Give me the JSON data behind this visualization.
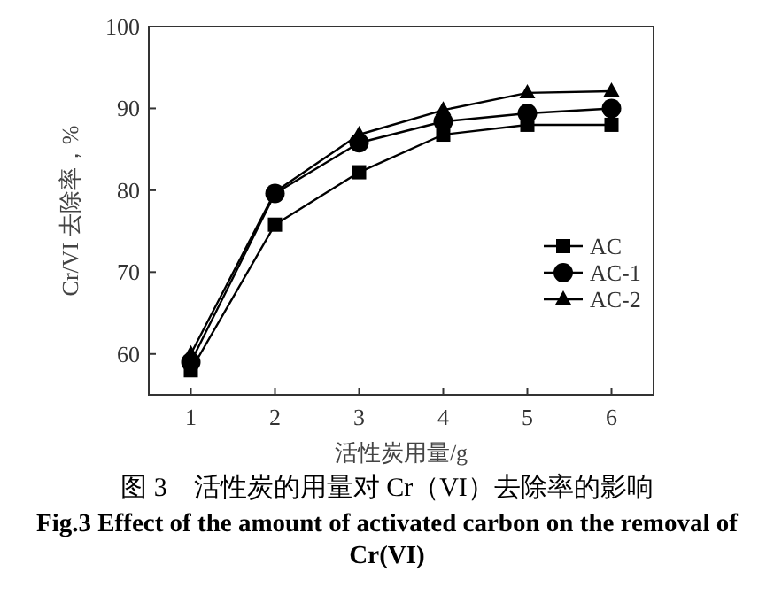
{
  "chart_data": {
    "type": "line",
    "title": "图 3　活性炭的用量对 Cr（VI）去除率的影响",
    "subtitle": "Fig.3 Effect of the amount of activated carbon on the removal of Cr(VI)",
    "xlabel": "活性炭用量/g",
    "ylabel": "Cr/VI 去除率，%",
    "x": [
      1,
      2,
      3,
      4,
      5,
      6
    ],
    "series": [
      {
        "name": "AC",
        "color": "#000000",
        "marker": "square",
        "values": [
          58,
          75.8,
          82.2,
          86.8,
          88,
          88
        ]
      },
      {
        "name": "AC-1",
        "color": "#000000",
        "marker": "circle",
        "values": [
          59,
          79.6,
          85.8,
          88.4,
          89.4,
          90
        ]
      },
      {
        "name": "AC-2",
        "color": "#000000",
        "marker": "triangle",
        "values": [
          60,
          79.8,
          86.8,
          89.8,
          91.9,
          92.1
        ]
      }
    ],
    "xlim": [
      0.5,
      6.5
    ],
    "ylim": [
      55,
      100
    ],
    "xticks": [
      1,
      2,
      3,
      4,
      5,
      6
    ],
    "yticks": [
      60,
      70,
      80,
      90,
      100
    ],
    "line_style": "solid",
    "legend": "right"
  }
}
